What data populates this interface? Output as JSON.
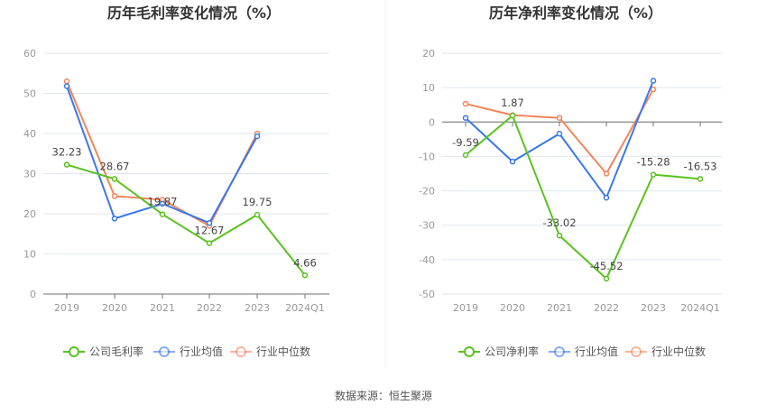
{
  "footer": "数据来源：恒生聚源",
  "colors": {
    "company": "#5ac21f",
    "avg": "#3a78e8",
    "median": "#f5845a"
  },
  "chart_data": [
    {
      "type": "line",
      "title": "历年毛利率变化情况（%）",
      "categories": [
        "2019",
        "2020",
        "2021",
        "2022",
        "2023",
        "2024Q1"
      ],
      "ylim": [
        0,
        60
      ],
      "yticks": [
        0,
        10,
        20,
        30,
        40,
        50,
        60
      ],
      "grid": true,
      "legend_placement": "bottom",
      "series": [
        {
          "name": "公司毛利率",
          "key": "company",
          "values": [
            32.23,
            28.67,
            19.87,
            12.67,
            19.75,
            4.66
          ],
          "labels": [
            "32.23",
            "28.67",
            "19.87",
            "12.67",
            "19.75",
            "4.66"
          ]
        },
        {
          "name": "行业均值",
          "key": "avg",
          "values": [
            51.8,
            18.8,
            22.5,
            17.7,
            39.3,
            null
          ]
        },
        {
          "name": "行业中位数",
          "key": "median",
          "values": [
            53.0,
            24.4,
            23.5,
            17.0,
            40.0,
            null
          ]
        }
      ]
    },
    {
      "type": "line",
      "title": "历年净利率变化情况（%）",
      "categories": [
        "2019",
        "2020",
        "2021",
        "2022",
        "2023",
        "2024Q1"
      ],
      "ylim": [
        -50,
        20
      ],
      "yticks": [
        -50,
        -40,
        -30,
        -20,
        -10,
        0,
        10,
        20
      ],
      "grid": true,
      "legend_placement": "bottom",
      "series": [
        {
          "name": "公司净利率",
          "key": "company",
          "values": [
            -9.59,
            1.87,
            -33.02,
            -45.52,
            -15.28,
            -16.53
          ],
          "labels": [
            "-9.59",
            "1.87",
            "-33.02",
            "-45.52",
            "-15.28",
            "-16.53"
          ]
        },
        {
          "name": "行业均值",
          "key": "avg",
          "values": [
            1.2,
            -11.5,
            -3.4,
            -22.0,
            12.0,
            null
          ]
        },
        {
          "name": "行业中位数",
          "key": "median",
          "values": [
            5.3,
            2.0,
            1.2,
            -15.0,
            9.5,
            null
          ]
        }
      ]
    }
  ]
}
